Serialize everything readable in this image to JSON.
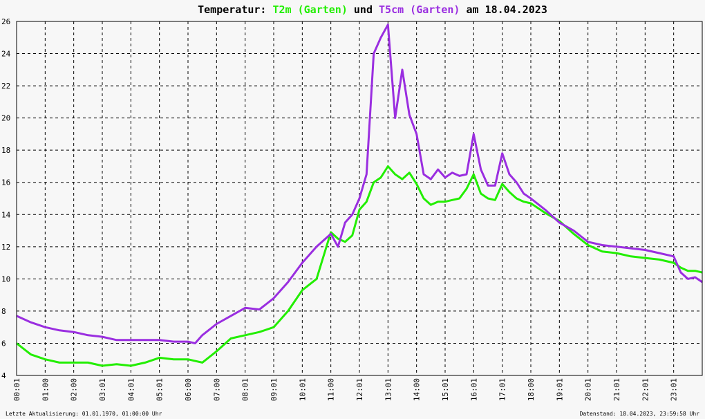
{
  "title": {
    "prefix": "Temperatur: ",
    "series1": "T2m (Garten)",
    "mid": " und ",
    "series2": "T5cm (Garten)",
    "suffix": " am 18.04.2023"
  },
  "footer": {
    "left": "Letzte Aktualisierung: 01.01.1970, 01:00:00 Uhr",
    "right": "Datenstand: 18.04.2023, 23:59:58 Uhr"
  },
  "colors": {
    "series1": "#22ee00",
    "series2": "#9a2ee0",
    "grid": "#000000",
    "background": "#f7f7f7"
  },
  "chart_data": {
    "type": "line",
    "title": "Temperatur: T2m (Garten) und T5cm (Garten) am 18.04.2023",
    "xlabel": "",
    "ylabel": "",
    "xlim": [
      0,
      24
    ],
    "ylim": [
      4,
      26
    ],
    "grid": true,
    "x_ticks": [
      "00:01",
      "01:00",
      "02:00",
      "03:01",
      "04:01",
      "05:01",
      "06:00",
      "07:00",
      "08:01",
      "09:01",
      "10:01",
      "11:00",
      "12:01",
      "13:01",
      "14:00",
      "15:01",
      "16:01",
      "17:01",
      "18:00",
      "19:01",
      "20:01",
      "21:01",
      "22:01",
      "23:01"
    ],
    "y_ticks": [
      4,
      6,
      8,
      10,
      12,
      14,
      16,
      18,
      20,
      22,
      24,
      26
    ],
    "x": [
      0.0,
      0.5,
      1.0,
      1.5,
      2.0,
      2.5,
      3.0,
      3.5,
      4.0,
      4.5,
      5.0,
      5.5,
      6.0,
      6.25,
      6.5,
      7.0,
      7.5,
      8.0,
      8.5,
      9.0,
      9.5,
      10.0,
      10.5,
      11.0,
      11.25,
      11.5,
      11.75,
      12.0,
      12.25,
      12.5,
      12.75,
      13.0,
      13.25,
      13.5,
      13.75,
      14.0,
      14.25,
      14.5,
      14.75,
      15.0,
      15.25,
      15.5,
      15.75,
      16.0,
      16.25,
      16.5,
      16.75,
      17.0,
      17.25,
      17.5,
      17.75,
      18.0,
      18.5,
      19.0,
      19.5,
      20.0,
      20.5,
      21.0,
      21.5,
      22.0,
      22.5,
      23.0,
      23.25,
      23.5,
      23.75,
      24.0
    ],
    "series": [
      {
        "name": "T2m (Garten)",
        "color": "#22ee00",
        "values": [
          6.0,
          5.3,
          5.0,
          4.8,
          4.8,
          4.8,
          4.6,
          4.7,
          4.6,
          4.8,
          5.1,
          5.0,
          5.0,
          4.9,
          4.8,
          5.5,
          6.3,
          6.5,
          6.7,
          7.0,
          8.0,
          9.3,
          10.0,
          12.9,
          12.5,
          12.3,
          12.7,
          14.3,
          14.8,
          16.0,
          16.3,
          17.0,
          16.5,
          16.2,
          16.6,
          15.9,
          15.0,
          14.6,
          14.8,
          14.8,
          14.9,
          15.0,
          15.6,
          16.5,
          15.3,
          15.0,
          14.9,
          15.9,
          15.4,
          15.0,
          14.8,
          14.7,
          14.1,
          13.6,
          12.8,
          12.1,
          11.7,
          11.6,
          11.4,
          11.3,
          11.2,
          11.0,
          10.7,
          10.5,
          10.5,
          10.4
        ]
      },
      {
        "name": "T5cm (Garten)",
        "color": "#9a2ee0",
        "values": [
          7.7,
          7.3,
          7.0,
          6.8,
          6.7,
          6.5,
          6.4,
          6.2,
          6.2,
          6.2,
          6.2,
          6.1,
          6.1,
          6.0,
          6.5,
          7.2,
          7.7,
          8.2,
          8.1,
          8.8,
          9.8,
          11.0,
          12.0,
          12.8,
          12.0,
          13.5,
          14.0,
          15.0,
          16.5,
          24.0,
          25.0,
          25.8,
          20.0,
          23.0,
          20.2,
          19.0,
          16.5,
          16.2,
          16.8,
          16.3,
          16.6,
          16.4,
          16.5,
          19.0,
          16.8,
          15.8,
          15.8,
          17.8,
          16.5,
          16.0,
          15.3,
          15.0,
          14.3,
          13.5,
          13.0,
          12.3,
          12.1,
          12.0,
          11.9,
          11.8,
          11.6,
          11.4,
          10.4,
          10.0,
          10.1,
          9.8
        ]
      }
    ]
  }
}
